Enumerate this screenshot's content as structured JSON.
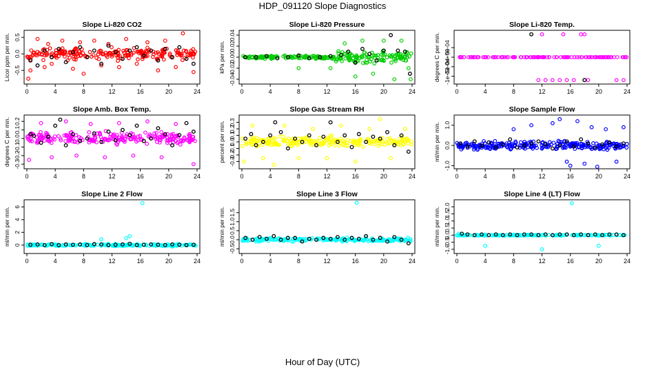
{
  "page": {
    "title": "HDP_091120  Slope Diagnostics",
    "x_axis_title": "Hour of Day (UTC)"
  },
  "colors": {
    "red": "#ff0000",
    "green": "#00cc00",
    "magenta": "#ff00ff",
    "yellow": "#ffff00",
    "blue": "#0000ff",
    "cyan": "#00ffff",
    "overlay": "#000000"
  },
  "chart_data": [
    {
      "type": "scatter",
      "title": "Slope Li-820 CO2",
      "ylabel": "Licor ppm per min.",
      "xlim": [
        0,
        24
      ],
      "xticks": [
        0,
        4,
        8,
        12,
        16,
        20,
        24
      ],
      "ylim": [
        -0.85,
        0.65
      ],
      "yticks": [
        -0.5,
        0,
        0.5
      ],
      "ytick_labels": [
        "-0.5",
        "0.0",
        "0.5"
      ],
      "color": "red",
      "series": [
        {
          "values_note_free": true,
          "x": [
            0.2,
            0.5,
            1.5,
            2.5,
            3.0,
            3.5,
            5.0,
            6.5,
            7.5,
            8.0,
            9.5,
            10.5,
            11.5,
            13.0,
            14.0,
            15.5,
            17.0,
            18.5,
            19.5,
            21.0,
            22.0,
            23.5
          ],
          "y": [
            -0.75,
            -0.5,
            0.45,
            -0.4,
            0.3,
            -0.3,
            0.4,
            -0.45,
            0.35,
            -0.6,
            0.4,
            -0.35,
            0.3,
            -0.4,
            0.45,
            -0.3,
            0.35,
            -0.5,
            0.4,
            -0.4,
            0.62,
            -0.55
          ]
        }
      ],
      "overlay_points": {
        "x": [
          0.5,
          1.5,
          2.5,
          3.5,
          4.5,
          5.5,
          6.5,
          7.5,
          8.5,
          9.5,
          10.5,
          11.5,
          12.5,
          13.5,
          14.5,
          15.5,
          16.5,
          17.5,
          18.5,
          19.5,
          20.5,
          21.5,
          22.5,
          23.5
        ],
        "y": [
          -0.2,
          -0.35,
          0.1,
          -0.1,
          0.15,
          -0.25,
          0.05,
          0.2,
          -0.1,
          0.1,
          -0.3,
          0.25,
          0.05,
          -0.15,
          0.1,
          0.2,
          -0.05,
          0.1,
          -0.2,
          0.15,
          -0.1,
          0.2,
          -0.15,
          -0.3
        ]
      },
      "spread": 0.25,
      "density": 220,
      "dense_range": [
        0.0,
        24.0
      ]
    },
    {
      "type": "scatter",
      "title": "Slope Li-820 Pressure",
      "ylabel": "kPa per min.",
      "xlim": [
        0,
        24
      ],
      "xticks": [
        0,
        4,
        8,
        12,
        16,
        20,
        24
      ],
      "ylim": [
        -0.045,
        0.045
      ],
      "yticks": [
        -0.04,
        -0.02,
        0.0,
        0.02,
        0.04
      ],
      "ytick_labels": [
        "-0.04",
        "-0.02",
        "0.00",
        "0.02",
        "0.04"
      ],
      "color": "green",
      "series": [
        {
          "x": [
            8.0,
            12.5,
            14.5,
            16.0,
            17.0,
            18.5,
            20.0,
            21.5,
            22.5,
            23.5,
            23.8
          ],
          "y": [
            -0.02,
            -0.02,
            0.025,
            -0.035,
            0.03,
            -0.03,
            0.03,
            -0.04,
            0.03,
            -0.02,
            -0.04
          ]
        }
      ],
      "overlay_points": {
        "x": [
          0.5,
          2.0,
          3.5,
          5.0,
          6.5,
          8.0,
          9.5,
          11.0,
          12.5,
          14.0,
          15.0,
          16.0,
          17.0,
          18.0,
          19.0,
          20.0,
          21.0,
          22.0,
          23.0,
          23.7
        ],
        "y": [
          0.0,
          0.0,
          0.002,
          -0.002,
          0.0,
          0.003,
          -0.002,
          0.0,
          0.002,
          0.004,
          0.01,
          -0.01,
          0.015,
          0.006,
          -0.006,
          0.012,
          0.04,
          0.012,
          0.01,
          -0.03
        ]
      },
      "spread": 0.004,
      "spread_late": 0.014,
      "late_start": 13.0,
      "density": 240,
      "dense_range": [
        0.0,
        24.0
      ]
    },
    {
      "type": "scatter",
      "title": "Slope Li-820 Temp.",
      "ylabel": "degrees C per min.",
      "xlim": [
        0,
        24
      ],
      "xticks": [
        0,
        4,
        8,
        12,
        16,
        20,
        24
      ],
      "ylim": [
        -0.0013,
        0.0013
      ],
      "yticks": [
        -0.001,
        -0.0005,
        0.0,
        0.0005
      ],
      "ytick_labels": [
        "-1e-03",
        "-5e-04",
        "0e+00",
        "5e-04"
      ],
      "color": "magenta",
      "series": [
        {
          "x": [
            12.0,
            15.0,
            17.5,
            18.0,
            11.5,
            12.5,
            13.5,
            14.5,
            15.5,
            16.5,
            18.0,
            18.5,
            22.5,
            23.5
          ],
          "y": [
            0.0012,
            0.0012,
            0.0012,
            0.0012,
            -0.0012,
            -0.0012,
            -0.0012,
            -0.0012,
            -0.0012,
            -0.0012,
            -0.0012,
            -0.0012,
            -0.0012,
            -0.0012
          ]
        }
      ],
      "overlay_points": {
        "x": [
          10.5,
          18.0
        ],
        "y": [
          0.0012,
          -0.0012
        ]
      },
      "flat": true,
      "density": 120,
      "dense_range": [
        0.0,
        24.0
      ]
    },
    {
      "type": "scatter",
      "title": "Slope Amb. Box Temp.",
      "ylabel": "degrees C per min.",
      "xlim": [
        0,
        24
      ],
      "xticks": [
        0,
        4,
        8,
        12,
        16,
        20,
        24
      ],
      "ylim": [
        -0.33,
        0.25
      ],
      "yticks": [
        -0.3,
        -0.2,
        -0.1,
        0.0,
        0.1,
        0.2
      ],
      "ytick_labels": [
        "-0.3",
        "-0.2",
        "-0.1",
        "0.0",
        "0.1",
        "0.2"
      ],
      "color": "magenta",
      "series": [
        {
          "x": [
            0.3,
            2.0,
            3.5,
            5.5,
            7.0,
            9.0,
            11.0,
            13.0,
            15.0,
            17.0,
            19.0,
            21.0,
            23.5
          ],
          "y": [
            -0.25,
            0.18,
            -0.22,
            0.2,
            -0.2,
            0.17,
            -0.22,
            0.18,
            -0.2,
            0.2,
            -0.22,
            0.17,
            -0.3
          ]
        }
      ],
      "overlay_points": {
        "x": [
          0.5,
          1.0,
          2.0,
          3.0,
          4.0,
          4.7,
          5.5,
          6.5,
          7.5,
          8.5,
          9.5,
          10.5,
          11.5,
          12.5,
          13.5,
          14.5,
          15.5,
          16.5,
          17.5,
          18.5,
          19.5,
          20.5,
          21.5,
          22.5,
          23.5
        ],
        "y": [
          0.05,
          0.03,
          -0.05,
          0.02,
          0.15,
          0.22,
          -0.08,
          0.05,
          -0.03,
          0.0,
          0.06,
          -0.04,
          0.08,
          -0.02,
          0.1,
          0.04,
          0.15,
          -0.03,
          0.0,
          0.12,
          0.05,
          -0.08,
          0.04,
          0.18,
          0.08
        ]
      },
      "spread": 0.1,
      "density": 230,
      "dense_range": [
        0.0,
        24.0
      ]
    },
    {
      "type": "scatter",
      "title": "Slope Gas Stream RH",
      "ylabel": "percent per min.",
      "xlim": [
        0,
        24
      ],
      "xticks": [
        0,
        4,
        8,
        12,
        16,
        20,
        24
      ],
      "ylim": [
        -0.38,
        0.38
      ],
      "yticks": [
        -0.3,
        -0.2,
        -0.1,
        0.0,
        0.1,
        0.2,
        0.3
      ],
      "ytick_labels": [
        "-0.3",
        "-0.2",
        "-0.1",
        "0.0",
        "0.1",
        "0.2",
        "0.3"
      ],
      "color": "yellow",
      "series": [
        {
          "x": [
            0.3,
            1.5,
            3.0,
            4.5,
            6.0,
            8.0,
            10.0,
            12.0,
            14.0,
            16.0,
            18.0,
            19.5,
            21.0,
            23.0
          ],
          "y": [
            -0.3,
            0.25,
            -0.25,
            -0.35,
            0.25,
            -0.25,
            0.2,
            -0.25,
            0.25,
            -0.3,
            0.2,
            0.35,
            -0.25,
            0.2
          ]
        }
      ],
      "overlay_points": {
        "x": [
          0.5,
          1.3,
          2.0,
          3.0,
          4.0,
          4.7,
          5.5,
          6.5,
          7.5,
          8.5,
          9.5,
          10.5,
          11.5,
          12.5,
          13.5,
          14.5,
          15.5,
          16.5,
          17.5,
          18.5,
          19.5,
          20.5,
          21.5,
          22.5,
          23.5
        ],
        "y": [
          0.05,
          0.12,
          -0.05,
          0.0,
          0.1,
          0.3,
          0.15,
          -0.1,
          0.05,
          0.0,
          0.1,
          -0.05,
          0.08,
          0.3,
          0.0,
          0.1,
          -0.08,
          0.12,
          0.0,
          0.08,
          0.05,
          0.15,
          -0.05,
          0.1,
          -0.15
        ]
      },
      "spread": 0.11,
      "density": 230,
      "dense_range": [
        0.0,
        24.0
      ]
    },
    {
      "type": "scatter",
      "title": "Slope Sample Flow",
      "ylabel": "ml/min per min.",
      "xlim": [
        0,
        24
      ],
      "xticks": [
        0,
        4,
        8,
        12,
        16,
        20,
        24
      ],
      "ylim": [
        -1.05,
        1.4
      ],
      "yticks": [
        -1.0,
        0.0,
        1.0
      ],
      "ytick_labels": [
        "-1.0",
        "0.0",
        "1.0"
      ],
      "color": "blue",
      "series": [
        {
          "x": [
            8.0,
            10.5,
            13.5,
            14.5,
            15.5,
            16.0,
            17.0,
            18.0,
            19.0,
            19.8,
            21.0,
            22.5,
            23.5
          ],
          "y": [
            0.8,
            1.0,
            1.1,
            1.3,
            -0.8,
            -1.0,
            1.2,
            -0.9,
            0.9,
            -1.05,
            0.8,
            -0.8,
            0.9
          ]
        }
      ],
      "overlay_points": {
        "x": [
          0.5,
          1.5,
          2.5,
          3.5,
          4.5,
          5.5,
          6.5,
          7.5,
          8.5,
          9.5,
          10.5,
          11.5,
          12.5,
          13.5,
          14.5,
          15.5,
          16.5,
          17.5,
          18.5,
          19.5,
          20.5,
          21.5,
          22.5,
          23.5
        ],
        "y": [
          0.1,
          -0.05,
          0.2,
          0.0,
          0.15,
          -0.1,
          0.05,
          0.3,
          -0.1,
          0.0,
          0.1,
          0.2,
          0.05,
          -0.15,
          0.0,
          0.2,
          -0.05,
          0.3,
          0.1,
          -0.1,
          0.05,
          0.15,
          -0.05,
          0.1
        ]
      },
      "spread": 0.3,
      "density": 260,
      "dense_range": [
        0.0,
        24.0
      ]
    },
    {
      "type": "scatter",
      "title": "Slope Line 2 Flow",
      "ylabel": "ml/min per min.",
      "xlim": [
        0,
        24
      ],
      "xticks": [
        0,
        4,
        8,
        12,
        16,
        20,
        24
      ],
      "ylim": [
        -1.0,
        6.8
      ],
      "yticks": [
        0,
        2,
        4,
        6
      ],
      "ytick_labels": [
        "0",
        "2",
        "4",
        "6"
      ],
      "color": "cyan",
      "series": [
        {
          "x": [
            16.3,
            14.5,
            14.0,
            10.5
          ],
          "y": [
            6.6,
            1.4,
            1.1,
            0.9
          ]
        }
      ],
      "overlay_points": {
        "x": [
          0.5,
          1.5,
          2.5,
          3.5,
          4.5,
          5.5,
          6.5,
          7.5,
          8.5,
          9.5,
          10.5,
          11.5,
          12.5,
          13.5,
          14.5,
          15.5,
          16.5,
          17.5,
          18.5,
          19.5,
          20.5,
          21.5,
          22.5,
          23.5
        ],
        "y": [
          0.05,
          0.1,
          0.0,
          0.15,
          0.0,
          0.1,
          0.05,
          0.1,
          0.0,
          0.15,
          0.1,
          0.0,
          0.05,
          0.1,
          0.2,
          0.0,
          0.05,
          0.1,
          0.05,
          0.0,
          0.1,
          0.05,
          0.0,
          0.05
        ]
      },
      "spread": 0.25,
      "density": 200,
      "dense_range": [
        0.0,
        24.0
      ]
    },
    {
      "type": "scatter",
      "title": "Slope Line 3 Flow",
      "ylabel": "ml/min per min.",
      "xlim": [
        0,
        24
      ],
      "xticks": [
        0,
        4,
        8,
        12,
        16,
        20,
        24
      ],
      "ylim": [
        -0.65,
        2.1
      ],
      "yticks": [
        -0.5,
        0.0,
        0.5,
        1.0,
        1.5
      ],
      "ytick_labels": [
        "-0.5",
        "0.0",
        "0.5",
        "1.0",
        "1.5"
      ],
      "color": "cyan",
      "series": [
        {
          "x": [
            16.2
          ],
          "y": [
            2.05
          ]
        }
      ],
      "overlay_points": {
        "x": [
          0.5,
          1.5,
          2.5,
          3.5,
          4.5,
          5.5,
          6.5,
          7.5,
          8.5,
          9.5,
          10.5,
          11.5,
          12.5,
          13.5,
          14.5,
          15.5,
          16.5,
          17.5,
          18.5,
          19.5,
          20.5,
          21.5,
          22.5,
          23.5
        ],
        "y": [
          0.1,
          0.0,
          0.15,
          0.05,
          0.2,
          0.0,
          0.1,
          0.1,
          -0.1,
          0.05,
          0.0,
          0.1,
          0.05,
          0.15,
          0.0,
          0.1,
          0.05,
          0.2,
          0.0,
          0.1,
          -0.1,
          0.15,
          0.0,
          -0.2
        ]
      },
      "spread": 0.14,
      "density": 200,
      "dense_range": [
        0.0,
        24.0
      ]
    },
    {
      "type": "scatter",
      "title": "Slope Line 4 (LT) Flow",
      "ylabel": "ml/min per min.",
      "xlim": [
        0,
        24
      ],
      "xticks": [
        0,
        4,
        8,
        12,
        16,
        20,
        24
      ],
      "ylim": [
        -1.15,
        2.35
      ],
      "yticks": [
        -1.0,
        -0.5,
        0.0,
        0.5,
        1.0,
        1.5,
        2.0
      ],
      "ytick_labels": [
        "-1.0",
        "-0.5",
        "0.0",
        "0.5",
        "1.0",
        "1.5",
        "2.0"
      ],
      "color": "cyan",
      "series": [
        {
          "x": [
            16.2,
            4.0,
            12.0,
            20.0,
            0.3
          ],
          "y": [
            2.25,
            -0.75,
            -1.0,
            -0.75,
            0.1
          ]
        }
      ],
      "overlay_points": {
        "x": [
          0.7,
          1.5,
          2.5,
          3.5,
          4.5,
          5.5,
          6.5,
          7.5,
          8.5,
          9.5,
          10.5,
          11.5,
          12.5,
          13.5,
          14.5,
          15.5,
          16.5,
          17.5,
          18.5,
          19.5,
          20.5,
          21.5,
          22.5,
          23.5
        ],
        "y": [
          0.1,
          0.05,
          0.0,
          0.05,
          0.0,
          0.05,
          0.0,
          0.05,
          0.0,
          0.05,
          0.05,
          0.0,
          0.05,
          0.0,
          0.05,
          0.05,
          0.0,
          0.05,
          0.0,
          0.05,
          0.0,
          0.05,
          0.05,
          0.0
        ]
      },
      "spread": 0.05,
      "density": 150,
      "dense_range": [
        0.0,
        24.0
      ]
    }
  ]
}
